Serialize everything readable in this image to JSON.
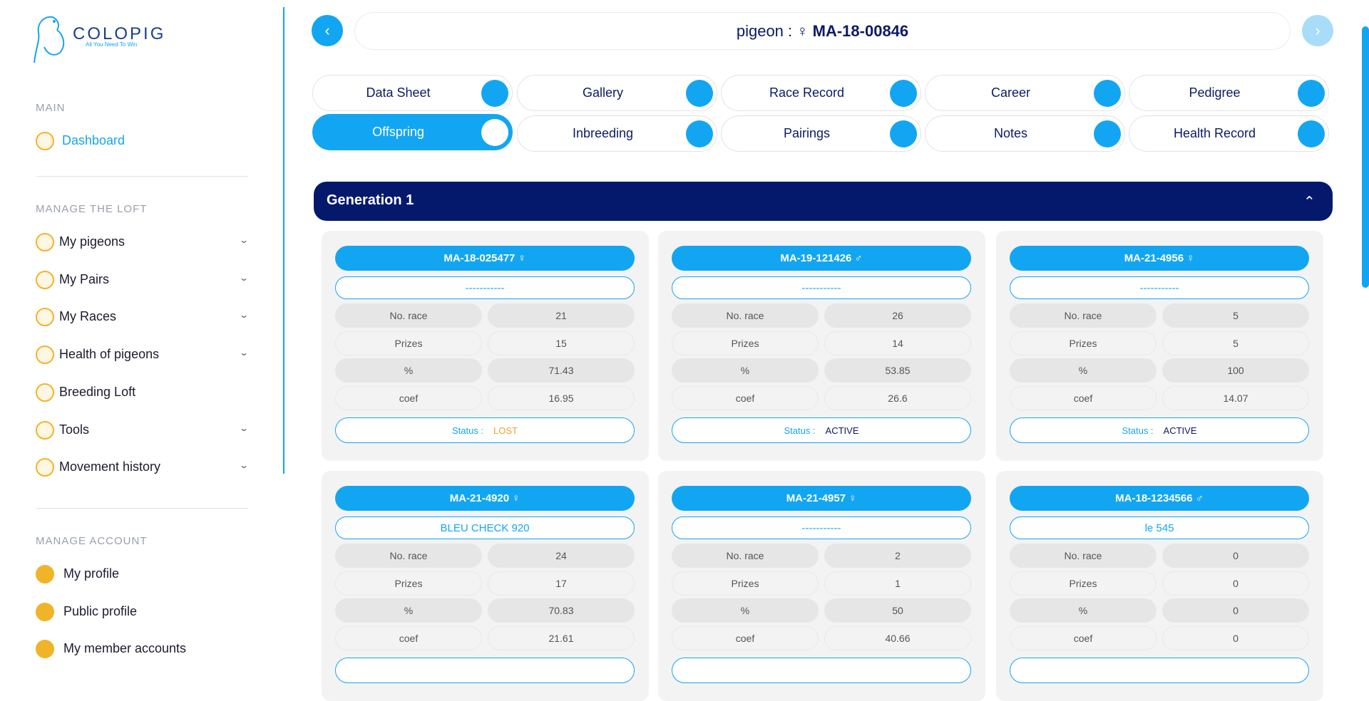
{
  "sidebar": {
    "logo": {
      "name": "COLOPIG",
      "tagline": "All You Need To Win"
    },
    "sections": [
      {
        "title": "MAIN",
        "items": [
          {
            "label": "Dashboard",
            "expandable": false
          }
        ]
      },
      {
        "title": "MANAGE THE LOFT",
        "items": [
          {
            "label": "My pigeons",
            "expandable": true
          },
          {
            "label": "My Pairs",
            "expandable": true
          },
          {
            "label": "My Races",
            "expandable": true
          },
          {
            "label": "Health of pigeons",
            "expandable": true
          },
          {
            "label": "Breeding Loft",
            "expandable": false
          },
          {
            "label": "Tools",
            "expandable": true
          },
          {
            "label": "Movement history",
            "expandable": true
          }
        ]
      },
      {
        "title": "MANAGE ACCOUNT",
        "items": [
          {
            "label": "My profile",
            "expandable": false
          },
          {
            "label": "Public profile",
            "expandable": false
          },
          {
            "label": "My member accounts",
            "expandable": false
          }
        ]
      }
    ]
  },
  "header": {
    "prefix": "pigeon :",
    "sex": "♀",
    "id": "MA-18-00846"
  },
  "tabs": [
    {
      "label": "Data Sheet"
    },
    {
      "label": "Gallery"
    },
    {
      "label": "Race Record"
    },
    {
      "label": "Career"
    },
    {
      "label": "Pedigree"
    },
    {
      "label": "Offspring",
      "active": true
    },
    {
      "label": "Inbreeding"
    },
    {
      "label": "Pairings"
    },
    {
      "label": "Notes"
    },
    {
      "label": "Health Record"
    }
  ],
  "section": {
    "title": "Generation 1",
    "stat_labels": [
      "No. race",
      "Prizes",
      "%",
      "coef"
    ],
    "status_label": "Status :",
    "cards": [
      {
        "id": "MA-18-025477",
        "sex": "♀",
        "name": "-----------",
        "stats": [
          21,
          15,
          71.43,
          16.95
        ],
        "status": "LOST",
        "status_color": "#f0a030"
      },
      {
        "id": "MA-19-121426",
        "sex": "♂",
        "name": "-----------",
        "stats": [
          26,
          14,
          53.85,
          26.6
        ],
        "status": "ACTIVE",
        "status_color": "#0b1a66"
      },
      {
        "id": "MA-21-4956",
        "sex": "♀",
        "name": "-----------",
        "stats": [
          5,
          5,
          100,
          14.07
        ],
        "status": "ACTIVE",
        "status_color": "#0b1a66"
      },
      {
        "id": "MA-21-4920",
        "sex": "♀",
        "name": "BLEU CHECK 920",
        "stats": [
          24,
          17,
          70.83,
          21.61
        ]
      },
      {
        "id": "MA-21-4957",
        "sex": "♀",
        "name": "-----------",
        "stats": [
          2,
          1,
          50,
          40.66
        ]
      },
      {
        "id": "MA-18-1234566",
        "sex": "♂",
        "name": "le 545",
        "stats": [
          0,
          0,
          0,
          0
        ]
      }
    ]
  }
}
